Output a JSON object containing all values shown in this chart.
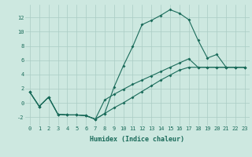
{
  "xlabel": "Humidex (Indice chaleur)",
  "background_color": "#cde8e0",
  "grid_color": "#aaccc4",
  "line_color": "#1a6b5a",
  "xlim": [
    -0.5,
    23.5
  ],
  "ylim": [
    -3.2,
    13.8
  ],
  "xticks": [
    0,
    1,
    2,
    3,
    4,
    5,
    6,
    7,
    8,
    9,
    10,
    11,
    12,
    13,
    14,
    15,
    16,
    17,
    18,
    19,
    20,
    21,
    22,
    23
  ],
  "yticks": [
    -2,
    0,
    2,
    4,
    6,
    8,
    10,
    12
  ],
  "line1_x": [
    0,
    1,
    2,
    3,
    4,
    5,
    6,
    7,
    8,
    9,
    10,
    11,
    12,
    13,
    14,
    15,
    16,
    17,
    18,
    19,
    20,
    21,
    22,
    23
  ],
  "line1_y": [
    1.5,
    -0.5,
    0.8,
    -1.6,
    -1.7,
    -1.7,
    -1.8,
    -2.3,
    -1.5,
    2.2,
    5.2,
    7.9,
    11.0,
    11.6,
    12.3,
    13.1,
    12.6,
    11.7,
    8.8,
    6.3,
    6.8,
    5.0,
    5.0,
    5.0
  ],
  "line2_x": [
    0,
    1,
    2,
    3,
    4,
    5,
    6,
    7,
    8,
    9,
    10,
    11,
    12,
    13,
    14,
    15,
    16,
    17,
    18,
    19,
    20,
    21,
    22,
    23
  ],
  "line2_y": [
    1.5,
    -0.5,
    0.8,
    -1.6,
    -1.7,
    -1.7,
    -1.8,
    -2.3,
    0.4,
    1.2,
    1.9,
    2.6,
    3.2,
    3.8,
    4.4,
    5.0,
    5.6,
    6.2,
    5.0,
    5.0,
    5.0,
    5.0,
    5.0,
    5.0
  ],
  "line3_x": [
    0,
    1,
    2,
    3,
    4,
    5,
    6,
    7,
    8,
    9,
    10,
    11,
    12,
    13,
    14,
    15,
    16,
    17,
    18,
    19,
    20,
    21,
    22,
    23
  ],
  "line3_y": [
    1.5,
    -0.5,
    0.8,
    -1.6,
    -1.7,
    -1.7,
    -1.8,
    -2.3,
    -1.5,
    -0.7,
    0.0,
    0.8,
    1.6,
    2.4,
    3.2,
    3.9,
    4.6,
    5.0,
    5.0,
    5.0,
    5.0,
    5.0,
    5.0,
    5.0
  ],
  "tick_fontsize": 5.0,
  "xlabel_fontsize": 6.0,
  "markersize": 2.0,
  "linewidth": 0.8
}
